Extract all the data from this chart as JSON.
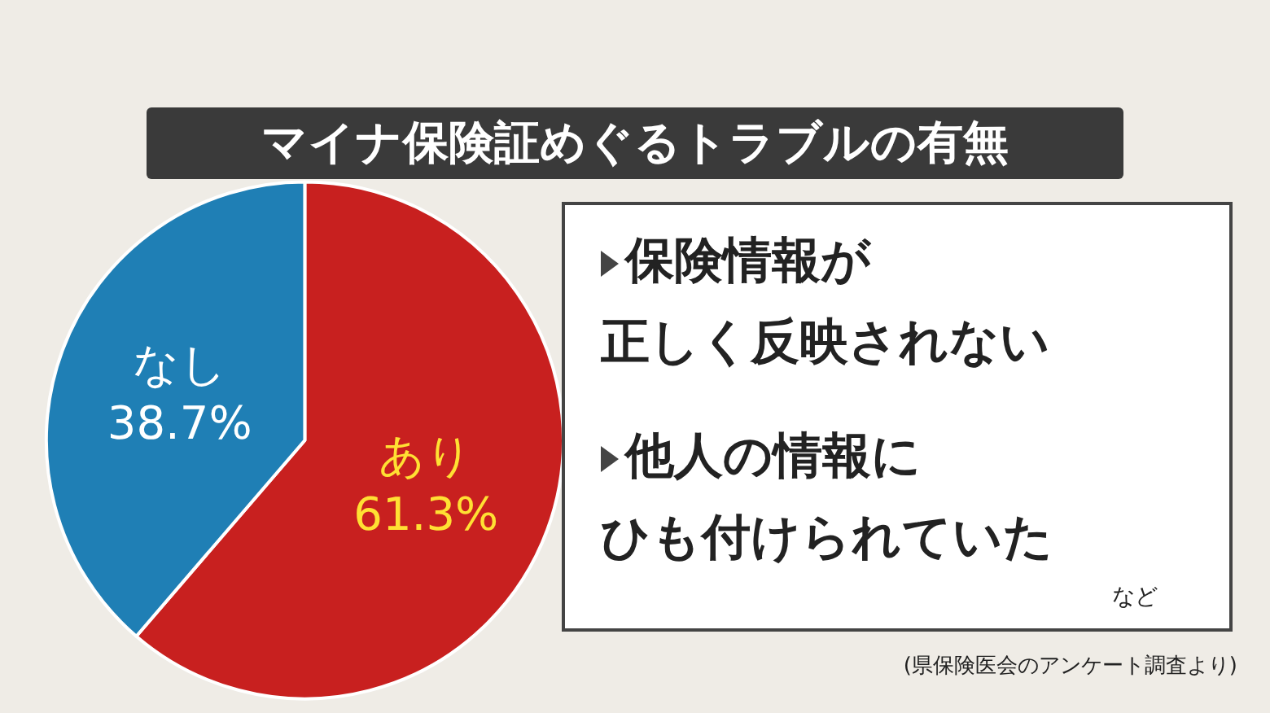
{
  "chart_data": {
    "type": "pie",
    "title": "マイナ保険証めぐるトラブルの有無",
    "categories": [
      "あり",
      "なし"
    ],
    "values": [
      61.3,
      38.7
    ],
    "value_labels": [
      "61.3%",
      "38.7%"
    ],
    "colors": [
      "#c8201f",
      "#1f7fb5"
    ],
    "legend": false,
    "annotations": [
      "保険情報が",
      "正しく反映されない",
      "他人の情報に",
      "ひも付けられていた",
      "など",
      "(県保険医会のアンケート調査より)"
    ]
  }
}
